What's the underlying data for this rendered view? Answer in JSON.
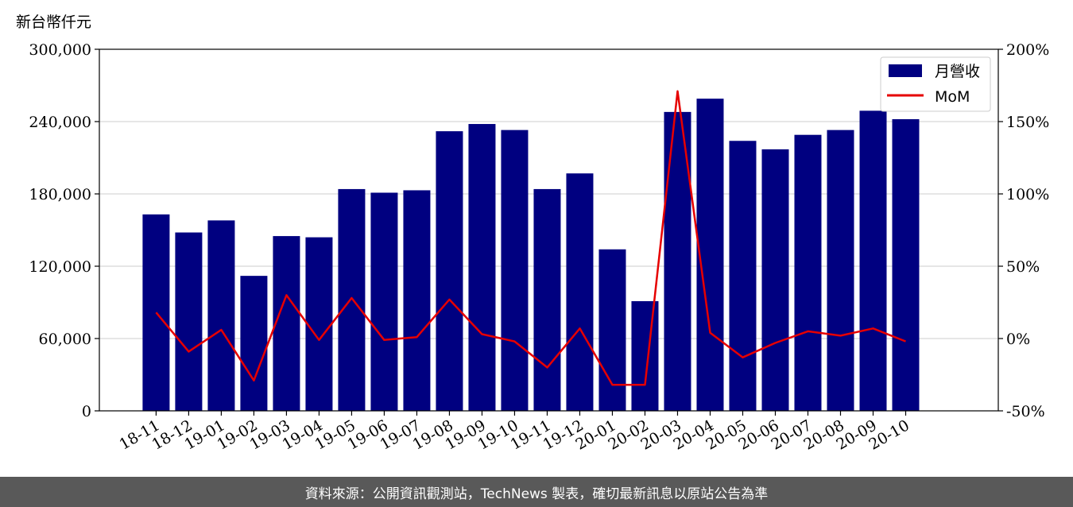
{
  "chart_data": {
    "type": "bar",
    "y_unit_label": "新台幣仟元",
    "categories": [
      "18-11",
      "18-12",
      "19-01",
      "19-02",
      "19-03",
      "19-04",
      "19-05",
      "19-06",
      "19-07",
      "19-08",
      "19-09",
      "19-10",
      "19-11",
      "19-12",
      "20-01",
      "20-02",
      "20-03",
      "20-04",
      "20-05",
      "20-06",
      "20-07",
      "20-08",
      "20-09",
      "20-10"
    ],
    "series": [
      {
        "name": "月營收",
        "type": "bar",
        "axis": "left",
        "color": "#000080",
        "values": [
          163000,
          148000,
          158000,
          112000,
          145000,
          144000,
          184000,
          181000,
          183000,
          232000,
          238000,
          233000,
          184000,
          197000,
          134000,
          91000,
          248000,
          259000,
          224000,
          217000,
          229000,
          233000,
          249000,
          242000
        ]
      },
      {
        "name": "MoM",
        "type": "line",
        "axis": "right",
        "color": "#e60000",
        "values": [
          18,
          -9,
          6,
          -29,
          30,
          -1,
          28,
          -1,
          1,
          27,
          3,
          -2,
          -20,
          7,
          -32,
          -32,
          171,
          4,
          -13,
          -3,
          5,
          2,
          7,
          -2
        ]
      }
    ],
    "y_left": {
      "min": 0,
      "max": 300000,
      "ticks": [
        "0",
        "60,000",
        "120,000",
        "180,000",
        "240,000",
        "300,000"
      ]
    },
    "y_right": {
      "min": -50,
      "max": 200,
      "ticks": [
        "-50%",
        "0%",
        "50%",
        "100%",
        "150%",
        "200%"
      ]
    },
    "grid": "horizontal",
    "legend_position": "top-right"
  },
  "footer": {
    "source_text": "資料來源：公開資訊觀測站，TechNews 製表，確切最新訊息以原站公告為準"
  }
}
